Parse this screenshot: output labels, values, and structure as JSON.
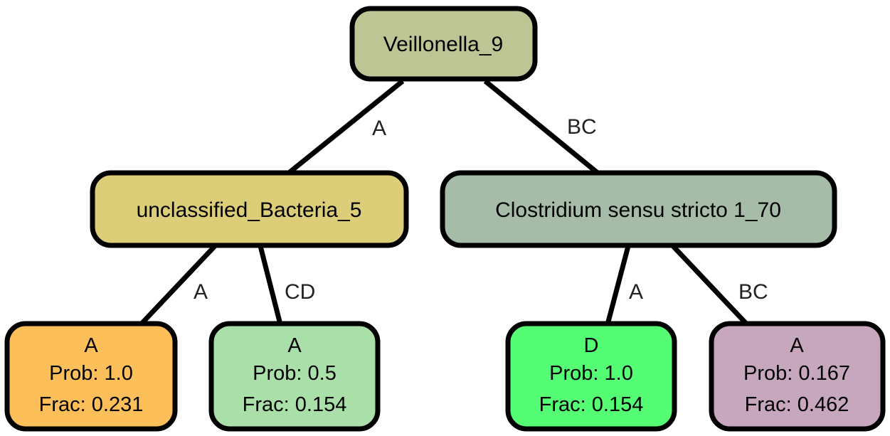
{
  "root": {
    "label": "Veillonella_9",
    "color": "#bec595"
  },
  "left": {
    "label": "unclassified_Bacteria_5",
    "color": "#dcce79"
  },
  "right": {
    "label": "Clostridium sensu stricto 1_70",
    "color": "#a6bca9"
  },
  "edges": {
    "root_left": "A",
    "root_right": "BC",
    "left_leaf1": "A",
    "left_leaf2": "CD",
    "right_leaf3": "A",
    "right_leaf4": "BC"
  },
  "leaves": [
    {
      "class_label": "A",
      "prob": "Prob: 1.0",
      "frac": "Frac: 0.231",
      "color": "#fdbf59"
    },
    {
      "class_label": "A",
      "prob": "Prob: 0.5",
      "frac": "Frac: 0.154",
      "color": "#aadfa9"
    },
    {
      "class_label": "D",
      "prob": "Prob: 1.0",
      "frac": "Frac: 0.154",
      "color": "#55fd74"
    },
    {
      "class_label": "A",
      "prob": "Prob: 0.167",
      "frac": "Frac: 0.462",
      "color": "#c7a7bd"
    }
  ]
}
